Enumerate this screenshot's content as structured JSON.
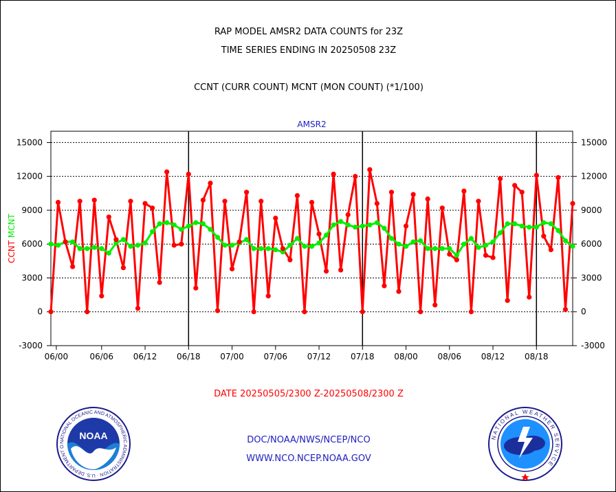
{
  "titles": {
    "line1": "RAP MODEL AMSR2 DATA COUNTS for 23Z",
    "line2": "TIME SERIES ENDING IN 20250508 23Z",
    "line3": "CCNT (CURR COUNT) MCNT (MON COUNT) (*1/100)"
  },
  "footer": {
    "date_range": "DATE 20250505/2300 Z-20250508/2300 Z",
    "org": "DOC/NOAA/NWS/NCEP/NCO",
    "url": "WWW.NCO.NCEP.NOAA.GOV"
  },
  "logos": {
    "noaa_text": "NOAA",
    "noaa_ring": "NATIONAL OCEANIC AND ATMOSPHERIC ADMINISTRATION · U.S. DEPARTMENT OF COMMERCE",
    "nws_ring": "NATIONAL WEATHER SERVICE"
  },
  "colors": {
    "ccnt": "#ff0000",
    "mcnt": "#00ee00",
    "label_blue": "#2020c0"
  },
  "chart_data": {
    "type": "line",
    "title": "AMSR2",
    "ylabel_parts": [
      "CCNT",
      "MCNT"
    ],
    "ylim": [
      -3000,
      16000
    ],
    "yticks": [
      -3000,
      0,
      3000,
      6000,
      9000,
      12000,
      15000
    ],
    "ytick_labels": [
      "-3000",
      "0",
      "3000",
      "6000",
      "9000",
      "12000",
      "15000"
    ],
    "xticks": [
      {
        "label": "06/00",
        "x": 0.75
      },
      {
        "label": "06/06",
        "x": 7.0
      },
      {
        "label": "06/12",
        "x": 13.0
      },
      {
        "label": "06/18",
        "x": 19.0
      },
      {
        "label": "07/00",
        "x": 25.0
      },
      {
        "label": "07/06",
        "x": 31.0
      },
      {
        "label": "07/12",
        "x": 37.0
      },
      {
        "label": "07/18",
        "x": 43.0
      },
      {
        "label": "08/00",
        "x": 49.0
      },
      {
        "label": "08/06",
        "x": 55.0
      },
      {
        "label": "08/12",
        "x": 61.0
      },
      {
        "label": "08/18",
        "x": 67.0
      }
    ],
    "xlim": [
      0,
      72
    ],
    "day_boundaries": [
      19.0,
      43.0,
      67.0
    ],
    "grid": true,
    "series": [
      {
        "name": "CCNT",
        "color": "#ff0000",
        "values": [
          0,
          9700,
          6200,
          4000,
          9800,
          0,
          9900,
          1400,
          8400,
          6400,
          3900,
          9800,
          300,
          9600,
          9200,
          2600,
          12400,
          5900,
          6000,
          12200,
          2100,
          9900,
          11400,
          100,
          9800,
          3800,
          6200,
          10600,
          0,
          9800,
          1400,
          8300,
          5600,
          4600,
          10300,
          0,
          9700,
          6900,
          3600,
          12200,
          3700,
          8600,
          12000,
          0,
          12600,
          9600,
          2300,
          10600,
          1800,
          7600,
          10400,
          0,
          10000,
          600,
          9200,
          5100,
          4600,
          10700,
          0,
          9800,
          5000,
          4800,
          11800,
          1000,
          11200,
          10600,
          1300,
          12100,
          6700,
          5500,
          11900,
          200,
          9600
        ]
      },
      {
        "name": "MCNT",
        "color": "#00ee00",
        "values": [
          6000,
          5900,
          6200,
          6200,
          5600,
          5600,
          5700,
          5600,
          5200,
          6100,
          6400,
          5800,
          5900,
          6100,
          7100,
          7800,
          7900,
          7700,
          7300,
          7600,
          7900,
          7800,
          7300,
          6600,
          5900,
          5900,
          6100,
          6400,
          5600,
          5600,
          5600,
          5500,
          5300,
          5900,
          6500,
          5800,
          5800,
          6100,
          6800,
          7700,
          8000,
          7700,
          7500,
          7600,
          7700,
          7900,
          7400,
          6500,
          6000,
          5800,
          6200,
          6300,
          5600,
          5600,
          5600,
          5600,
          5000,
          6000,
          6500,
          5700,
          5900,
          6200,
          7000,
          7800,
          7800,
          7600,
          7500,
          7500,
          7900,
          7800,
          7200,
          6300,
          5800
        ]
      }
    ]
  }
}
